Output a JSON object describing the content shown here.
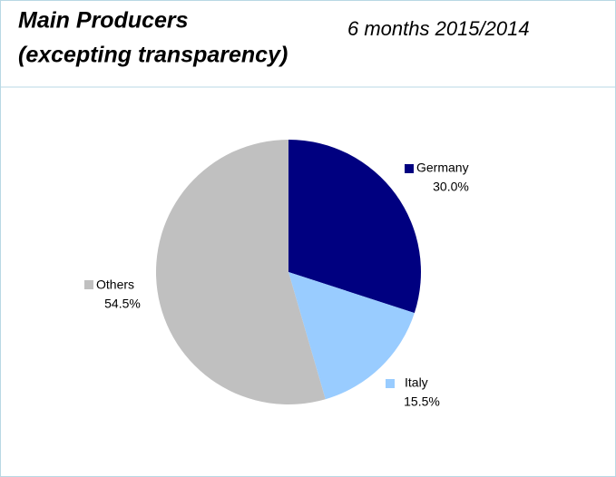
{
  "chart_data": {
    "type": "pie",
    "title": [
      "Main Producers",
      "(excepting transparency)"
    ],
    "subtitle": "6 months 2015/2014",
    "categories": [
      "Germany",
      "Italy",
      "Others"
    ],
    "values": [
      30.0,
      15.5,
      54.5
    ],
    "value_labels": [
      "30.0%",
      "15.5%",
      "54.5%"
    ],
    "colors": [
      "#000080",
      "#99ccff",
      "#c0c0c0"
    ]
  }
}
